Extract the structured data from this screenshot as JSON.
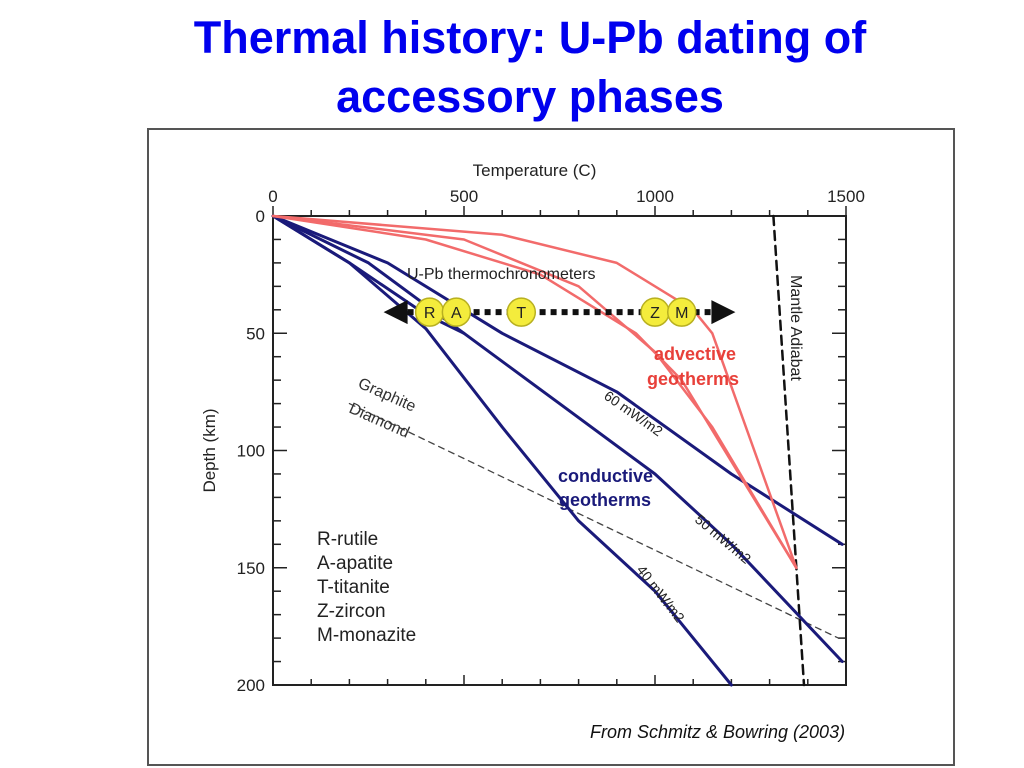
{
  "slide": {
    "title_line1": "Thermal history: U-Pb dating of",
    "title_line2": "accessory phases",
    "caption": "From Schmitz & Bowring (2003)"
  },
  "colors": {
    "title": "#0000ee",
    "conductive": "#1a1a7a",
    "advective": "#f26b6b",
    "advective_label": "#e8403a",
    "mineral_marker": "#f4ec3c"
  },
  "chart_data": {
    "type": "line",
    "xlabel": "Temperature (C)",
    "ylabel": "Depth (km)",
    "xlim": [
      0,
      1500
    ],
    "ylim": [
      200,
      0
    ],
    "x_axis_position": "top",
    "x_ticks": [
      "0",
      "500",
      "1000",
      "1500"
    ],
    "y_ticks": [
      "0",
      "50",
      "100",
      "150",
      "200"
    ],
    "x_tick_values": [
      0,
      500,
      1000,
      1500
    ],
    "y_tick_values": [
      0,
      50,
      100,
      150,
      200
    ],
    "grid": false,
    "conductive_geotherms": [
      {
        "name": "40 mW/m2",
        "points": [
          [
            0,
            0
          ],
          [
            200,
            20
          ],
          [
            400,
            48
          ],
          [
            600,
            90
          ],
          [
            800,
            130
          ],
          [
            1000,
            160
          ],
          [
            1200,
            200
          ]
        ]
      },
      {
        "name": "50 mW/m2",
        "points": [
          [
            0,
            0
          ],
          [
            250,
            20
          ],
          [
            500,
            50
          ],
          [
            750,
            80
          ],
          [
            1000,
            110
          ],
          [
            1200,
            140
          ],
          [
            1490,
            190
          ]
        ]
      },
      {
        "name": "60 mW/m2",
        "points": [
          [
            0,
            0
          ],
          [
            300,
            20
          ],
          [
            600,
            50
          ],
          [
            900,
            75
          ],
          [
            1200,
            110
          ],
          [
            1490,
            140
          ]
        ]
      },
      {
        "name": "",
        "points": [
          [
            0,
            0
          ],
          [
            200,
            20
          ],
          [
            400,
            42
          ],
          [
            500,
            50
          ]
        ]
      }
    ],
    "advective_geotherms": [
      {
        "name": "",
        "points": [
          [
            0,
            0
          ],
          [
            500,
            10
          ],
          [
            800,
            30
          ],
          [
            1000,
            58
          ],
          [
            1150,
            90
          ],
          [
            1370,
            150
          ]
        ]
      },
      {
        "name": "",
        "points": [
          [
            0,
            0
          ],
          [
            400,
            10
          ],
          [
            700,
            25
          ],
          [
            950,
            50
          ],
          [
            1070,
            70
          ],
          [
            1370,
            150
          ]
        ]
      },
      {
        "name": "",
        "points": [
          [
            0,
            0
          ],
          [
            600,
            8
          ],
          [
            900,
            20
          ],
          [
            1100,
            40
          ],
          [
            1150,
            50
          ],
          [
            1370,
            150
          ]
        ]
      }
    ],
    "mantle_adiabat": {
      "name": "Mantle Adiabat",
      "points": [
        [
          1310,
          0
        ],
        [
          1390,
          200
        ]
      ]
    },
    "graphite_diamond": {
      "above": "Graphite",
      "below": "Diamond",
      "points": [
        [
          200,
          80
        ],
        [
          1480,
          180
        ]
      ]
    },
    "thermochronometers": {
      "label": "U-Pb thermochronometers",
      "depth": 41,
      "range": [
        300,
        1200
      ],
      "markers": [
        {
          "label": "R",
          "temperature": 410
        },
        {
          "label": "A",
          "temperature": 480
        },
        {
          "label": "T",
          "temperature": 650
        },
        {
          "label": "Z",
          "temperature": 1000
        },
        {
          "label": "M",
          "temperature": 1070
        }
      ]
    },
    "annotations": {
      "advective": [
        "advective",
        "geotherms"
      ],
      "conductive": [
        "conductive",
        "geotherms"
      ],
      "heat_flow_60": "60 mW/m2",
      "heat_flow_50": "50 mW/m2",
      "heat_flow_40": "40 mW/m2"
    },
    "legend": {
      "placement": "bottom-left",
      "entries": [
        "R-rutile",
        "A-apatite",
        "T-titanite",
        "Z-zircon",
        "M-monazite"
      ]
    }
  }
}
